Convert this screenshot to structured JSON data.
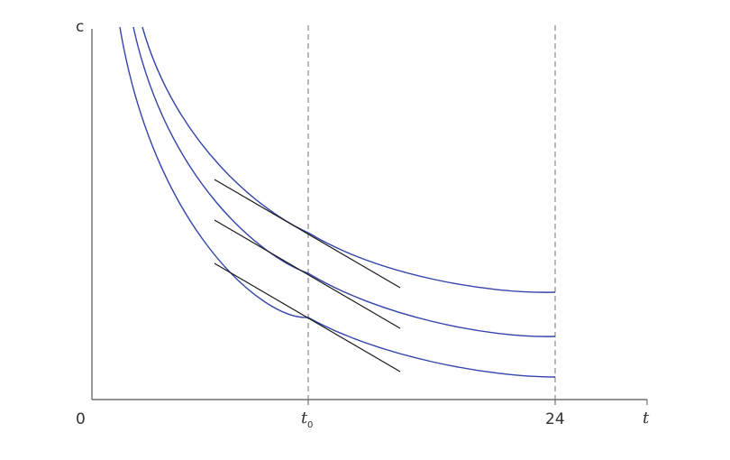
{
  "colors": {
    "curve": "#3344aa",
    "tangent": "#1a1a1a",
    "axis": "#555555",
    "guide": "#8a8a8a"
  },
  "labels": {
    "y_axis": "c",
    "origin": "0",
    "x_axis": "t",
    "t0_main": "t",
    "t0_sub": "0",
    "x_max": "24"
  },
  "chart_data": {
    "type": "line",
    "xlabel": "t",
    "ylabel": "c",
    "x_markers": [
      "t0",
      "24"
    ],
    "series": [
      {
        "kind": "indifference-curve",
        "level": "low"
      },
      {
        "kind": "indifference-curve",
        "level": "middle"
      },
      {
        "kind": "indifference-curve",
        "level": "high"
      }
    ],
    "tangents": [
      {
        "curve": "low",
        "at": "t0"
      },
      {
        "curve": "middle",
        "at": "t0"
      },
      {
        "curve": "high",
        "at": "t0"
      }
    ]
  }
}
